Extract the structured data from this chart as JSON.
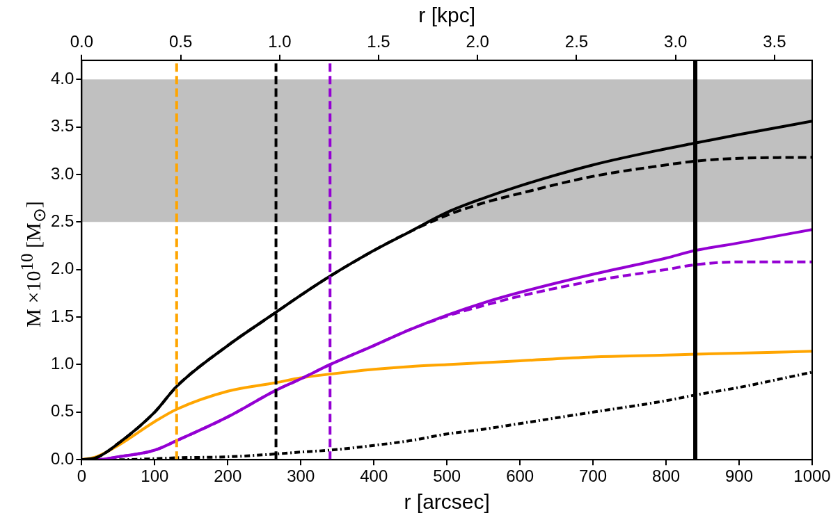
{
  "chart_data": {
    "type": "line",
    "xlabel": "r [arcsec]",
    "x2label": "r [kpc]",
    "ylabel": "M ×10$^{10}$  [M$_{⊙}$]",
    "xlim": [
      0,
      1000
    ],
    "xticks": [
      0,
      100,
      200,
      300,
      400,
      500,
      600,
      700,
      800,
      900,
      1000
    ],
    "x2lim": [
      0,
      3.69
    ],
    "x2ticks": [
      {
        "value": 0,
        "label": "0.0"
      },
      {
        "value": 0.5,
        "label": "0.5"
      },
      {
        "value": 1,
        "label": "1.0"
      },
      {
        "value": 1.5,
        "label": "1.5"
      },
      {
        "value": 2,
        "label": "2.0"
      },
      {
        "value": 2.5,
        "label": "2.5"
      },
      {
        "value": 3,
        "label": "3.0"
      },
      {
        "value": 3.5,
        "label": "3.5"
      }
    ],
    "ylim": [
      0,
      4.2
    ],
    "yticks": [
      {
        "value": 0,
        "label": "0.0"
      },
      {
        "value": 0.5,
        "label": "0.5"
      },
      {
        "value": 1,
        "label": "1.0"
      },
      {
        "value": 1.5,
        "label": "1.5"
      },
      {
        "value": 2,
        "label": "2.0"
      },
      {
        "value": 2.5,
        "label": "2.5"
      },
      {
        "value": 3,
        "label": "3.0"
      },
      {
        "value": 3.5,
        "label": "3.5"
      },
      {
        "value": 4,
        "label": "4.0"
      }
    ],
    "grid": false,
    "legend": false,
    "marker": "none",
    "x": [
      0,
      20,
      50,
      100,
      130,
      200,
      266,
      300,
      340,
      400,
      450,
      500,
      550,
      600,
      700,
      800,
      840,
      900,
      1000
    ],
    "series": [
      {
        "color": "#000000",
        "line_style": "solid",
        "values": [
          0,
          0.02,
          0.17,
          0.5,
          0.77,
          1.2,
          1.55,
          1.73,
          1.93,
          2.2,
          2.4,
          2.6,
          2.75,
          2.88,
          3.1,
          3.27,
          3.33,
          3.42,
          3.56
        ]
      },
      {
        "color": "#000000",
        "line_style": "dashed",
        "values": [
          0,
          0.02,
          0.17,
          0.5,
          0.77,
          1.2,
          1.55,
          1.73,
          1.93,
          2.2,
          2.4,
          2.57,
          2.7,
          2.8,
          2.98,
          3.1,
          3.14,
          3.17,
          3.18
        ]
      },
      {
        "color": "#9400d3",
        "line_style": "solid",
        "values": [
          0,
          0,
          0.03,
          0.1,
          0.2,
          0.45,
          0.73,
          0.85,
          1.0,
          1.2,
          1.37,
          1.52,
          1.65,
          1.76,
          1.95,
          2.12,
          2.2,
          2.28,
          2.42
        ]
      },
      {
        "color": "#9400d3",
        "line_style": "dashed",
        "values": [
          0,
          0,
          0.03,
          0.1,
          0.2,
          0.45,
          0.73,
          0.85,
          1.0,
          1.2,
          1.37,
          1.51,
          1.62,
          1.72,
          1.88,
          2.0,
          2.05,
          2.08,
          2.08
        ]
      },
      {
        "color": "#ffa500",
        "line_style": "solid",
        "values": [
          0,
          0.03,
          0.15,
          0.4,
          0.53,
          0.72,
          0.81,
          0.86,
          0.9,
          0.95,
          0.98,
          1.0,
          1.02,
          1.04,
          1.08,
          1.1,
          1.11,
          1.12,
          1.14
        ]
      },
      {
        "color": "#000000",
        "line_style": "dotted",
        "values": [
          0,
          0,
          0,
          0.01,
          0.02,
          0.03,
          0.06,
          0.08,
          0.1,
          0.15,
          0.2,
          0.27,
          0.32,
          0.38,
          0.5,
          0.62,
          0.68,
          0.76,
          0.92
        ]
      }
    ],
    "ref_lines": [
      {
        "axis": "x",
        "value": 130,
        "color": "#ffa500",
        "line_style": "dashed"
      },
      {
        "axis": "x",
        "value": 266,
        "color": "#000000",
        "line_style": "dashed"
      },
      {
        "axis": "x",
        "value": 340,
        "color": "#9400d3",
        "line_style": "dashed"
      },
      {
        "axis": "x",
        "value": 840,
        "color": "#000000",
        "line_style": "solid"
      }
    ],
    "bands": [
      {
        "axis": "y",
        "from": 2.5,
        "to": 4.0,
        "color": "#c0c0c0"
      }
    ]
  }
}
